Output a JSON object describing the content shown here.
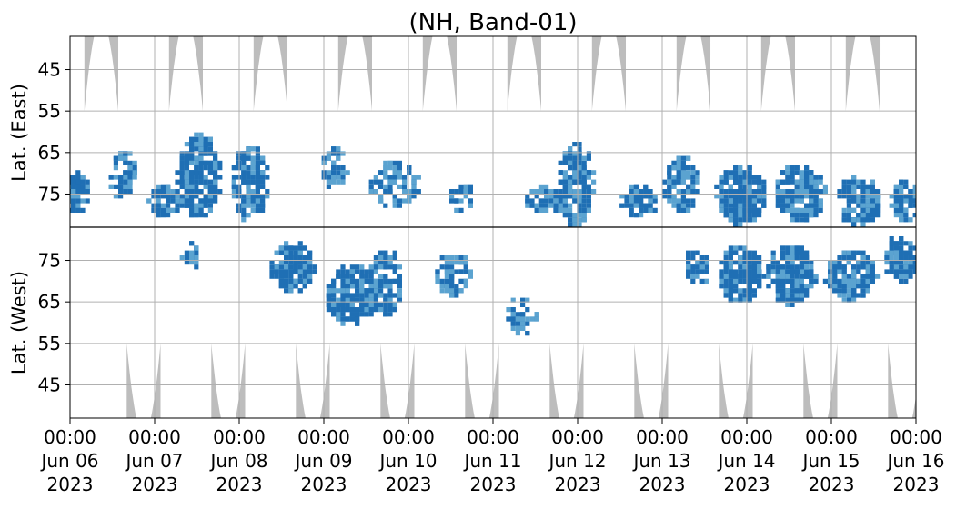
{
  "chart_data": {
    "type": "heatmap",
    "title": "(NH, Band-01)",
    "ylabel_top": "Lat. (East)",
    "ylabel_bottom": "Lat. (West)",
    "y_ticks_top": [
      "45",
      "55",
      "65",
      "75"
    ],
    "y_ticks_bottom": [
      "75",
      "65",
      "55",
      "45"
    ],
    "x_ticks": [
      {
        "time": "00:00",
        "date": "Jun 06",
        "year": "2023"
      },
      {
        "time": "00:00",
        "date": "Jun 07",
        "year": "2023"
      },
      {
        "time": "00:00",
        "date": "Jun 08",
        "year": "2023"
      },
      {
        "time": "00:00",
        "date": "Jun 09",
        "year": "2023"
      },
      {
        "time": "00:00",
        "date": "Jun 10",
        "year": "2023"
      },
      {
        "time": "00:00",
        "date": "Jun 11",
        "year": "2023"
      },
      {
        "time": "00:00",
        "date": "Jun 12",
        "year": "2023"
      },
      {
        "time": "00:00",
        "date": "Jun 13",
        "year": "2023"
      },
      {
        "time": "00:00",
        "date": "Jun 14",
        "year": "2023"
      },
      {
        "time": "00:00",
        "date": "Jun 15",
        "year": "2023"
      },
      {
        "time": "00:00",
        "date": "Jun 16",
        "year": "2023"
      }
    ],
    "x_range_days": [
      0,
      10
    ],
    "lat_range": [
      37,
      83
    ],
    "grid": true,
    "colors": {
      "strong": "#1f6fb4",
      "weak": "#5ba3d0",
      "no_data": "#bdbdbd",
      "divider": "#000000"
    },
    "no_data_regions": {
      "east_centers_day": [
        0.37,
        1.37,
        2.37,
        3.37,
        4.37,
        5.37,
        6.37,
        7.37,
        8.37,
        9.37
      ],
      "west_centers_day": [
        0.87,
        1.87,
        2.87,
        3.87,
        4.87,
        5.87,
        6.87,
        7.87,
        8.87,
        9.87
      ],
      "min_lat": 55
    },
    "activity_clusters": [
      {
        "panel": "east",
        "day": 0.05,
        "lat": 74,
        "width": 0.3,
        "lat_span": 10,
        "intensity": 0.8
      },
      {
        "panel": "east",
        "day": 0.6,
        "lat": 70,
        "width": 0.3,
        "lat_span": 12,
        "intensity": 0.4
      },
      {
        "panel": "east",
        "day": 1.1,
        "lat": 76,
        "width": 0.4,
        "lat_span": 8,
        "intensity": 0.6
      },
      {
        "panel": "east",
        "day": 1.5,
        "lat": 70,
        "width": 0.5,
        "lat_span": 20,
        "intensity": 0.8
      },
      {
        "panel": "east",
        "day": 2.1,
        "lat": 72,
        "width": 0.4,
        "lat_span": 18,
        "intensity": 0.6
      },
      {
        "panel": "east",
        "day": 3.1,
        "lat": 68,
        "width": 0.3,
        "lat_span": 10,
        "intensity": 0.3
      },
      {
        "panel": "east",
        "day": 3.8,
        "lat": 72,
        "width": 0.6,
        "lat_span": 10,
        "intensity": 0.3
      },
      {
        "panel": "east",
        "day": 4.6,
        "lat": 75,
        "width": 0.3,
        "lat_span": 6,
        "intensity": 0.3
      },
      {
        "panel": "east",
        "day": 5.6,
        "lat": 76,
        "width": 0.5,
        "lat_span": 6,
        "intensity": 0.3
      },
      {
        "panel": "east",
        "day": 5.95,
        "lat": 72,
        "width": 0.4,
        "lat_span": 20,
        "intensity": 0.6
      },
      {
        "panel": "east",
        "day": 6.7,
        "lat": 76,
        "width": 0.4,
        "lat_span": 8,
        "intensity": 0.7
      },
      {
        "panel": "east",
        "day": 7.2,
        "lat": 72,
        "width": 0.4,
        "lat_span": 14,
        "intensity": 0.4
      },
      {
        "panel": "east",
        "day": 7.9,
        "lat": 75,
        "width": 0.6,
        "lat_span": 14,
        "intensity": 0.8
      },
      {
        "panel": "east",
        "day": 8.6,
        "lat": 74,
        "width": 0.6,
        "lat_span": 14,
        "intensity": 0.7
      },
      {
        "panel": "east",
        "day": 9.3,
        "lat": 76,
        "width": 0.5,
        "lat_span": 12,
        "intensity": 0.6
      },
      {
        "panel": "east",
        "day": 9.85,
        "lat": 76,
        "width": 0.3,
        "lat_span": 10,
        "intensity": 0.8
      },
      {
        "panel": "west",
        "day": 1.4,
        "lat": 77,
        "width": 0.2,
        "lat_span": 6,
        "intensity": 0.3
      },
      {
        "panel": "west",
        "day": 2.6,
        "lat": 74,
        "width": 0.5,
        "lat_span": 12,
        "intensity": 0.8
      },
      {
        "panel": "west",
        "day": 3.3,
        "lat": 67,
        "width": 0.6,
        "lat_span": 14,
        "intensity": 0.8
      },
      {
        "panel": "west",
        "day": 3.7,
        "lat": 70,
        "width": 0.4,
        "lat_span": 16,
        "intensity": 0.5
      },
      {
        "panel": "west",
        "day": 4.5,
        "lat": 72,
        "width": 0.4,
        "lat_span": 10,
        "intensity": 0.4
      },
      {
        "panel": "west",
        "day": 5.3,
        "lat": 62,
        "width": 0.4,
        "lat_span": 8,
        "intensity": 0.2
      },
      {
        "panel": "west",
        "day": 7.4,
        "lat": 74,
        "width": 0.3,
        "lat_span": 8,
        "intensity": 0.5
      },
      {
        "panel": "west",
        "day": 7.9,
        "lat": 72,
        "width": 0.5,
        "lat_span": 14,
        "intensity": 0.8
      },
      {
        "panel": "west",
        "day": 8.5,
        "lat": 72,
        "width": 0.6,
        "lat_span": 14,
        "intensity": 0.8
      },
      {
        "panel": "west",
        "day": 9.2,
        "lat": 72,
        "width": 0.6,
        "lat_span": 12,
        "intensity": 0.7
      },
      {
        "panel": "west",
        "day": 9.8,
        "lat": 76,
        "width": 0.4,
        "lat_span": 10,
        "intensity": 0.7
      }
    ]
  }
}
